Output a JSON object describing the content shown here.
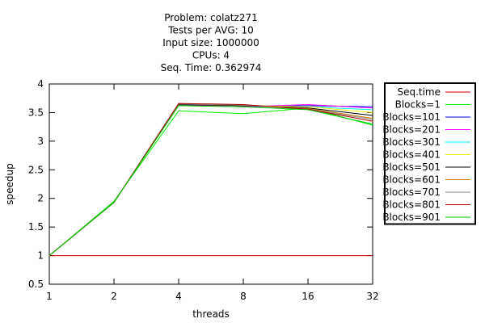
{
  "chart_data": {
    "type": "line",
    "title_lines": [
      "Problem: colatz271",
      "Tests per AVG: 10",
      "Input size: 1000000",
      "CPUs: 4",
      "Seq. Time: 0.362974"
    ],
    "xlabel": "threads",
    "ylabel": "speedup",
    "x_scale": "log2",
    "x": [
      1,
      2,
      4,
      8,
      16,
      32
    ],
    "x_tick_labels": [
      "1",
      "2",
      "4",
      "8",
      "16",
      "32"
    ],
    "ylim": [
      0.5,
      4
    ],
    "y_ticks": [
      0.5,
      1,
      1.5,
      2,
      2.5,
      3,
      3.5,
      4
    ],
    "y_tick_labels": [
      "0.5",
      "1",
      "1.5",
      "2",
      "2.5",
      "3",
      "3.5",
      "4"
    ],
    "grid": false,
    "legend_position": "outside-right",
    "series": [
      {
        "name": "Seq.time",
        "color": "#cc0000",
        "values": [
          1,
          1,
          1,
          1,
          1,
          1
        ]
      },
      {
        "name": "Blocks=1",
        "color": "#00ee00",
        "values": [
          1,
          1.95,
          3.53,
          3.48,
          3.58,
          3.28
        ]
      },
      {
        "name": "Blocks=101",
        "color": "#0000ff",
        "values": [
          1,
          1.93,
          3.63,
          3.6,
          3.62,
          3.6
        ]
      },
      {
        "name": "Blocks=201",
        "color": "#ff00ff",
        "values": [
          1,
          1.93,
          3.64,
          3.6,
          3.64,
          3.58
        ]
      },
      {
        "name": "Blocks=301",
        "color": "#00eeee",
        "values": [
          1,
          1.93,
          3.64,
          3.62,
          3.6,
          3.55
        ]
      },
      {
        "name": "Blocks=401",
        "color": "#eeee00",
        "values": [
          1,
          1.93,
          3.64,
          3.62,
          3.6,
          3.5
        ]
      },
      {
        "name": "Blocks=501",
        "color": "#000000",
        "values": [
          1,
          1.93,
          3.64,
          3.62,
          3.58,
          3.45
        ]
      },
      {
        "name": "Blocks=601",
        "color": "#cc7a00",
        "values": [
          1,
          1.93,
          3.65,
          3.63,
          3.57,
          3.4
        ]
      },
      {
        "name": "Blocks=701",
        "color": "#888888",
        "values": [
          1,
          1.93,
          3.65,
          3.63,
          3.56,
          3.38
        ]
      },
      {
        "name": "Blocks=801",
        "color": "#aa0000",
        "values": [
          1,
          1.93,
          3.66,
          3.64,
          3.56,
          3.35
        ]
      },
      {
        "name": "Blocks=901",
        "color": "#00cc00",
        "values": [
          1,
          1.93,
          3.62,
          3.6,
          3.55,
          3.3
        ]
      }
    ]
  }
}
